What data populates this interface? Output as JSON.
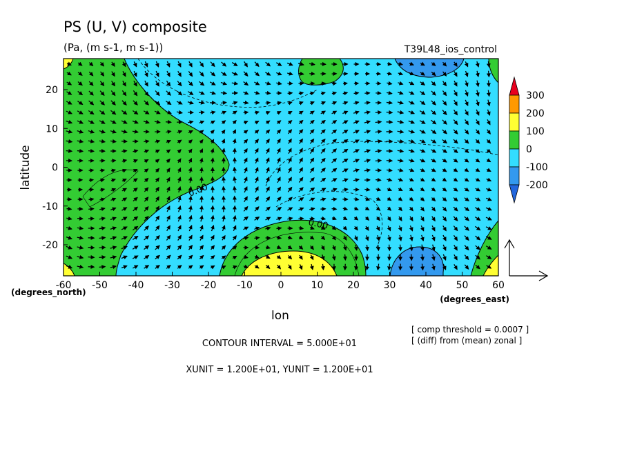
{
  "title": "PS (U, V) composite",
  "units_line": "(Pa, (m s-1, m s-1))",
  "run_label": "T39L48_ios_control",
  "chart_data": {
    "type": "heatmap",
    "xlabel": "lon",
    "ylabel": "latitude",
    "x_unit": "(degrees_east)",
    "y_unit": "(degrees_north)",
    "xlim": [
      -60,
      60
    ],
    "ylim": [
      -28,
      28
    ],
    "x_ticks": [
      -60,
      -50,
      -40,
      -30,
      -20,
      -10,
      0,
      10,
      20,
      30,
      40,
      50,
      60
    ],
    "y_ticks": [
      -20,
      -10,
      0,
      10,
      20
    ],
    "colorbar": {
      "labels": [
        "300",
        "200",
        "100",
        "0",
        "-100",
        "-200"
      ],
      "colors": [
        "#e8001e",
        "#ff9900",
        "#ffff33",
        "#33cc33",
        "#33ddff",
        "#3399ee",
        "#2266dd"
      ]
    },
    "contour_labels": [
      "0.00",
      "0.00"
    ],
    "notes": {
      "contour_interval": "CONTOUR INTERVAL = 5.000E+01",
      "vector_units": "XUNIT = 1.200E+01, YUNIT = 1.200E+01",
      "threshold": "[ comp threshold = 0.0007 ]",
      "diff": "[ (diff) from (mean) zonal ]"
    }
  }
}
